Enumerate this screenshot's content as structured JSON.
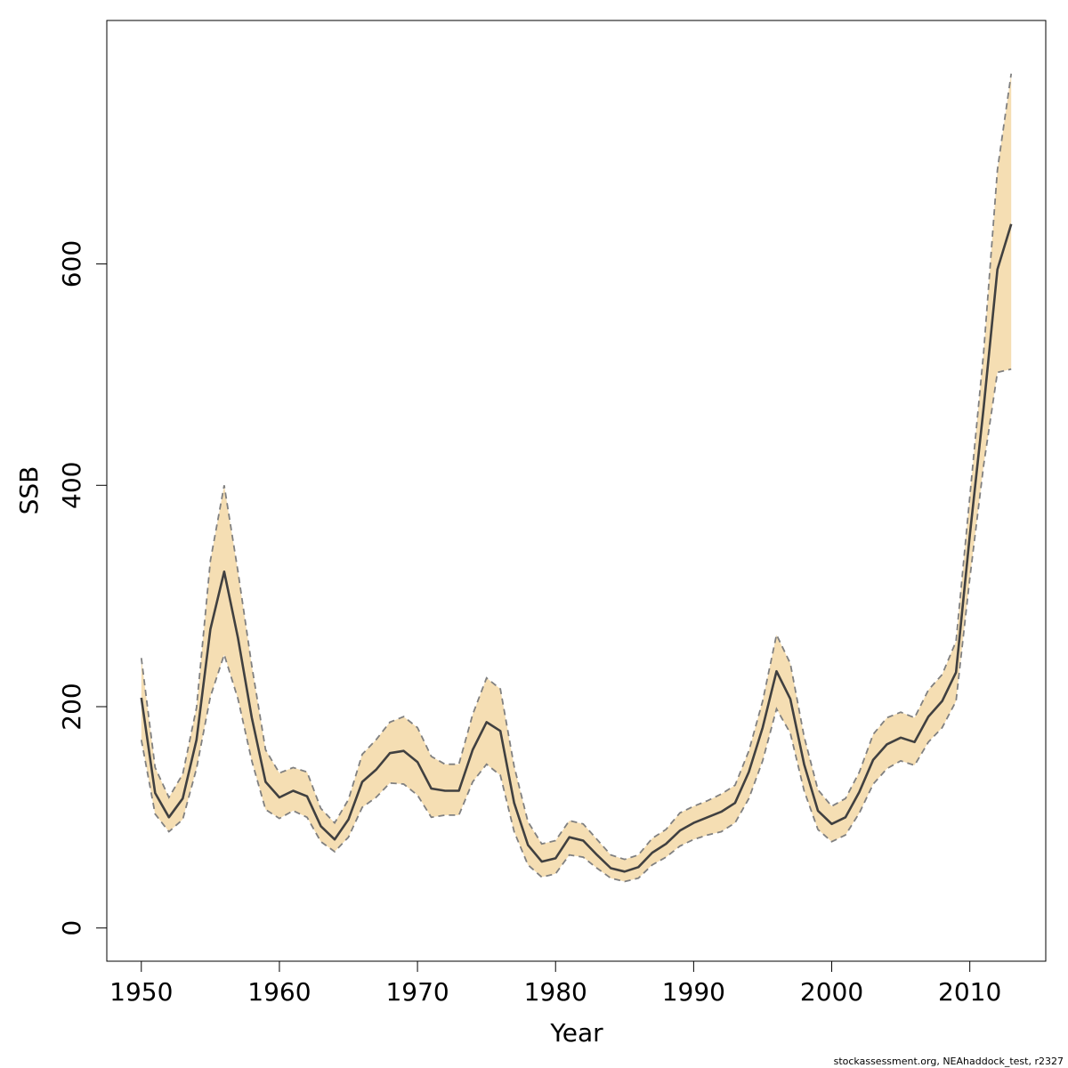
{
  "chart_data": {
    "type": "line",
    "title": "",
    "xlabel": "Year",
    "ylabel": "SSB",
    "xlim": [
      1947.5,
      2015.5
    ],
    "ylim": [
      -30,
      820
    ],
    "xticks": [
      1950,
      1960,
      1970,
      1980,
      1990,
      2000,
      2010
    ],
    "yticks": [
      0,
      200,
      400,
      600
    ],
    "grid": false,
    "band_color": "#f5deb3",
    "line_color": "#404040",
    "bound_color": "#808080",
    "x": [
      1950,
      1951,
      1952,
      1953,
      1954,
      1955,
      1956,
      1957,
      1958,
      1959,
      1960,
      1961,
      1962,
      1963,
      1964,
      1965,
      1966,
      1967,
      1968,
      1969,
      1970,
      1971,
      1972,
      1973,
      1974,
      1975,
      1976,
      1977,
      1978,
      1979,
      1980,
      1981,
      1982,
      1983,
      1984,
      1985,
      1986,
      1987,
      1988,
      1989,
      1990,
      1991,
      1992,
      1993,
      1994,
      1995,
      1996,
      1997,
      1998,
      1999,
      2000,
      2001,
      2002,
      2003,
      2004,
      2005,
      2006,
      2007,
      2008,
      2009,
      2010,
      2011,
      2012,
      2013
    ],
    "series": [
      {
        "values": [
          208,
          122,
          100,
          117,
          170,
          270,
          322,
          262,
          190,
          132,
          118,
          124,
          119,
          92,
          80,
          98,
          132,
          143,
          158,
          160,
          150,
          126,
          124,
          124,
          161,
          186,
          178,
          113,
          75,
          60,
          63,
          82,
          79,
          66,
          54,
          51,
          55,
          68,
          76,
          88,
          95,
          100,
          105,
          113,
          141,
          181,
          232,
          207,
          148,
          106,
          94,
          100,
          123,
          152,
          166,
          172,
          168,
          191,
          205,
          231,
          355,
          470,
          595,
          636
        ]
      }
    ],
    "lower": [
      170,
      103,
      87,
      98,
      144,
      209,
      247,
      207,
      151,
      107,
      99,
      106,
      100,
      78,
      69,
      82,
      109,
      118,
      131,
      130,
      120,
      100,
      102,
      102,
      132,
      148,
      138,
      87,
      57,
      46,
      49,
      66,
      64,
      54,
      45,
      42,
      45,
      57,
      64,
      74,
      80,
      84,
      87,
      95,
      117,
      151,
      198,
      176,
      124,
      89,
      78,
      84,
      104,
      130,
      144,
      151,
      147,
      168,
      181,
      205,
      316,
      418,
      502,
      505
    ],
    "upper": [
      244,
      145,
      118,
      139,
      199,
      332,
      400,
      322,
      237,
      161,
      140,
      145,
      141,
      108,
      95,
      116,
      157,
      170,
      186,
      191,
      181,
      155,
      148,
      148,
      193,
      226,
      216,
      146,
      96,
      76,
      79,
      97,
      94,
      80,
      66,
      62,
      66,
      81,
      89,
      104,
      110,
      115,
      121,
      129,
      160,
      205,
      265,
      239,
      173,
      125,
      110,
      117,
      141,
      175,
      190,
      195,
      190,
      215,
      229,
      259,
      390,
      520,
      685,
      772
    ],
    "footer": "stockassessment.org, NEAhaddock_test, r2327"
  }
}
